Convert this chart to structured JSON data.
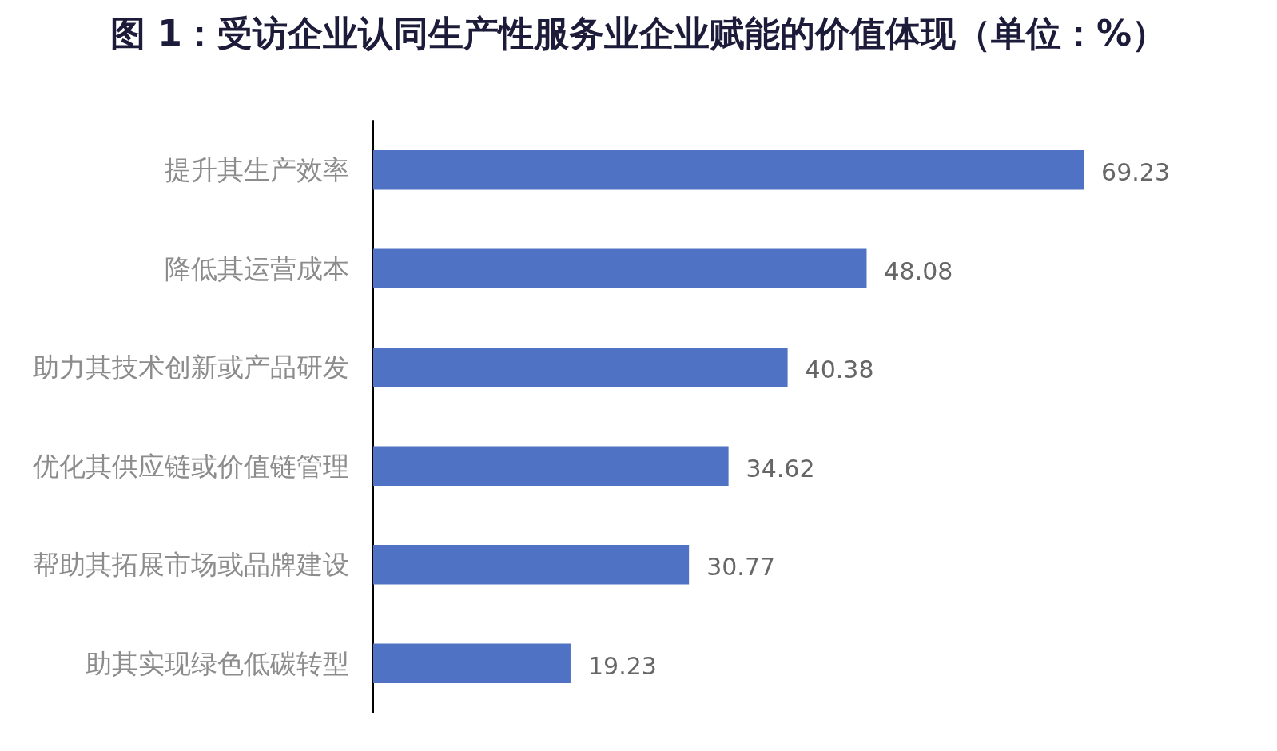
{
  "chart_data": {
    "type": "bar",
    "orientation": "horizontal",
    "title": "图 1：受访企业认同生产性服务业企业赋能的价值体现（单位：%）",
    "categories": [
      "提升其生产效率",
      "降低其运营成本",
      "助力其技术创新或产品研发",
      "优化其供应链或价值链管理",
      "帮助其拓展市场或品牌建设",
      "助其实现绿色低碳转型"
    ],
    "values": [
      69.23,
      48.08,
      40.38,
      34.62,
      30.77,
      19.23
    ],
    "color": "#5072c4",
    "data_labels": true,
    "tick_labels": "y"
  }
}
